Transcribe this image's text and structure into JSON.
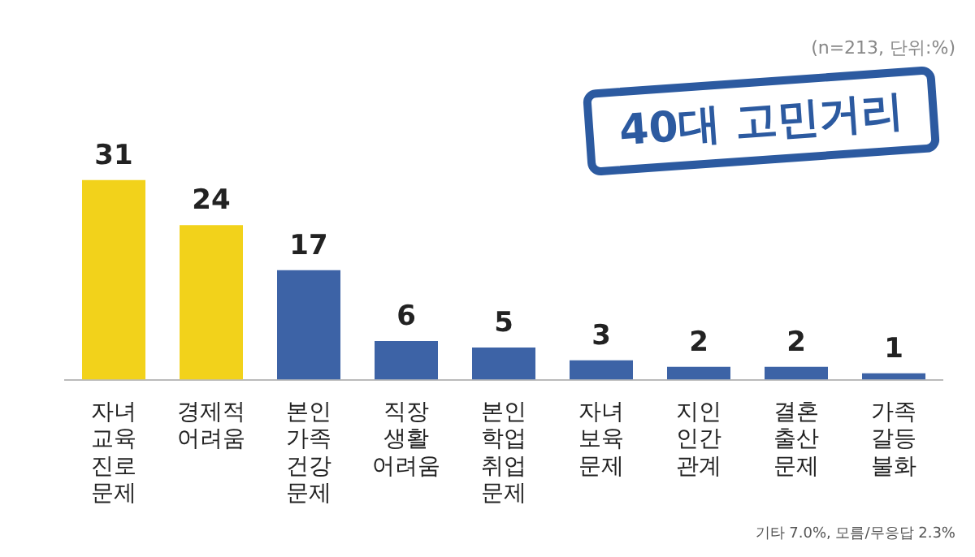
{
  "chart_data": {
    "type": "bar",
    "title": "40대 고민거리",
    "categories": [
      "자녀 교육 진로 문제",
      "경제적 어려움",
      "본인 가족 건강 문제",
      "직장 생활 어려움",
      "본인 학업 취업 문제",
      "자녀 보육 문제",
      "지인 인간 관계",
      "결혼 출산 문제",
      "가족 갈등 불화"
    ],
    "values": [
      31,
      24,
      17,
      6,
      5,
      3,
      2,
      2,
      1
    ],
    "colors": [
      "#f2d21b",
      "#f2d21b",
      "#3d63a6",
      "#3d63a6",
      "#3d63a6",
      "#3d63a6",
      "#3d63a6",
      "#3d63a6",
      "#3d63a6"
    ],
    "data_labels": true,
    "tick_labels": "x",
    "grid": false,
    "legend": false,
    "annotations": [
      "(n=213, 단위:%)",
      "기타 7.0%, 모름/무응답 2.3%"
    ]
  }
}
